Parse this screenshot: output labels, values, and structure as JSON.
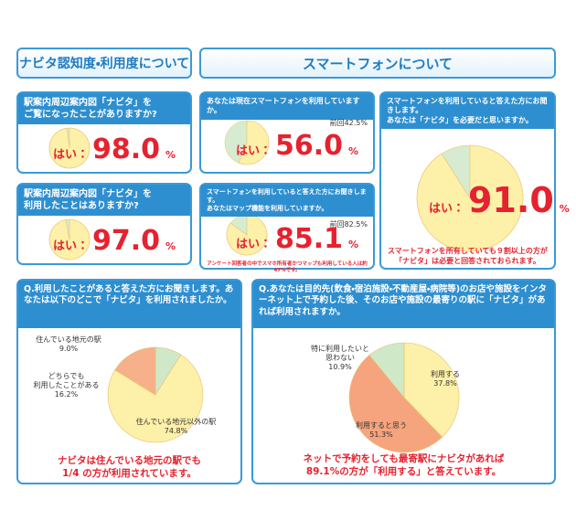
{
  "headers": {
    "left": "ナビタ認知度・利用度について",
    "right": "スマートフォンについて"
  },
  "chart_data": [
    {
      "type": "pie",
      "title": "駅案内周辺案内図「ナビタ」を\nご覧になったことがありますか?",
      "categories": [
        "はい："
      ],
      "values": [
        98
      ],
      "value_labels": [
        "98.0"
      ],
      "unit": "%",
      "colors": [
        "#fdf0a8"
      ],
      "rest_color": "#d6ebcf"
    },
    {
      "type": "pie",
      "title": "駅案内周辺案内図「ナビタ」を\n利用したことはありますか?",
      "categories": [
        "はい："
      ],
      "values": [
        97
      ],
      "value_labels": [
        "97.0"
      ],
      "unit": "%",
      "colors": [
        "#fdf0a8"
      ],
      "rest_color": "#d6ebcf"
    },
    {
      "type": "pie",
      "title": "あなたは現在スマートフォンを利用していますか。",
      "previous": "前回42.5%",
      "categories": [
        "はい："
      ],
      "values": [
        56
      ],
      "value_labels": [
        "56.0"
      ],
      "unit": "%",
      "colors": [
        "#fdf0a8"
      ],
      "rest_color": "#d6ebcf"
    },
    {
      "type": "pie",
      "title": "スマートフォンを利用していると答えた方にお聞きします。\nあなたはマップ機能を利用していますか。",
      "previous": "前回82.5%",
      "categories": [
        "はい："
      ],
      "values": [
        85.1
      ],
      "unit": "%",
      "colors": [
        "#fdf0a8"
      ],
      "rest_color": "#d6ebcf",
      "note": "アンケート回答者の中でスマホ所有者かつマップも利用している人は約47%です。"
    },
    {
      "type": "pie",
      "title": "スマートフォンを利用していると答えた方にお聞きします。\nあなたは「ナビタ」を必要だと思いますか。",
      "categories": [
        "はい："
      ],
      "values": [
        91
      ],
      "value_labels": [
        "91.0"
      ],
      "unit": "%",
      "colors": [
        "#fdf0a8"
      ],
      "rest_color": "#d6ebcf",
      "note": "スマートフォンを所有していても９割以上の方が\n「ナビタ」は必要と回答されておられます。"
    },
    {
      "type": "pie",
      "title": "Q.利用したことがあると答えた方にお聞きします。あなたは以下のどこで「ナビタ」を利用されましたか。",
      "categories": [
        "住んでいる地元の駅",
        "住んでいる地元以外の駅",
        "どちらでも\n利用したことがある"
      ],
      "values": [
        9,
        74.8,
        16.2
      ],
      "value_labels": [
        "9.0%",
        "74.8%",
        "16.2%"
      ],
      "colors": [
        "#cfe8c8",
        "#fdf0a8",
        "#f6b08a"
      ],
      "note": "ナビタは住んでいる地元の駅でも\n1/4 の方が利用されています。"
    },
    {
      "type": "pie",
      "title": "Q.あなたは目的先(飲食・宿泊施設・不動産屋・病院等)のお店や施設をインターネット上で予約した後、そのお店や施設の最寄りの駅に「ナビタ」があれば利用されますか。",
      "categories": [
        "利用する",
        "利用すると思う",
        "特に利用したいと\n思わない"
      ],
      "values": [
        37.8,
        51.3,
        10.9
      ],
      "value_labels": [
        "37.8%",
        "51.3%",
        "10.9%"
      ],
      "colors": [
        "#fdf0a8",
        "#f6a47e",
        "#cfe8c8"
      ],
      "note": "ネットで予約をしても最寄駅にナビタがあれば\n89.1%の方が「利用する」と答えています。"
    }
  ]
}
